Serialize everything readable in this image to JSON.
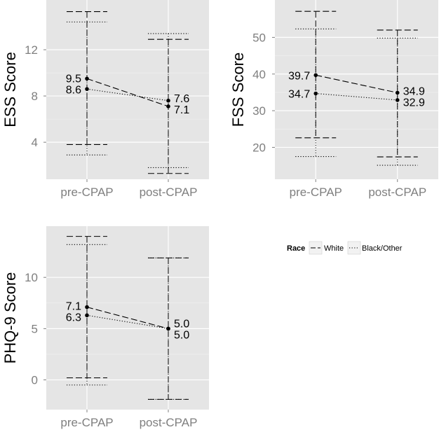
{
  "legend": {
    "title": "Race",
    "entries": [
      {
        "label": "White",
        "dash": "long"
      },
      {
        "label": "Black/Other",
        "dash": "dotted"
      }
    ]
  },
  "chart_data": [
    {
      "type": "line",
      "id": "ess",
      "ylabel": "ESS Score",
      "xlabel": "",
      "categories": [
        "pre-CPAP",
        "post-CPAP"
      ],
      "ylim": [
        0.8,
        16.3
      ],
      "yticks": [
        4,
        8,
        12
      ],
      "series": [
        {
          "name": "White",
          "dash": "long",
          "values": [
            9.5,
            7.1
          ],
          "labels": [
            "9.5",
            "7.1"
          ],
          "lower": [
            3.8,
            1.3
          ],
          "upper": [
            15.3,
            12.9
          ]
        },
        {
          "name": "Black/Other",
          "dash": "dotted",
          "values": [
            8.6,
            7.6
          ],
          "labels": [
            "8.6",
            "7.6"
          ],
          "lower": [
            2.9,
            1.8
          ],
          "upper": [
            14.4,
            13.4
          ]
        }
      ]
    },
    {
      "type": "line",
      "id": "fss",
      "ylabel": "FSS Score",
      "xlabel": "",
      "categories": [
        "pre-CPAP",
        "post-CPAP"
      ],
      "ylim": [
        11.3,
        60.2
      ],
      "yticks": [
        20,
        30,
        40,
        50
      ],
      "series": [
        {
          "name": "White",
          "dash": "long",
          "values": [
            39.7,
            34.9
          ],
          "labels": [
            "39.7",
            "34.9"
          ],
          "lower": [
            22.6,
            17.4
          ],
          "upper": [
            57.1,
            52.0
          ]
        },
        {
          "name": "Black/Other",
          "dash": "dotted",
          "values": [
            34.7,
            32.9
          ],
          "labels": [
            "34.7",
            "32.9"
          ],
          "lower": [
            17.5,
            15.1
          ],
          "upper": [
            52.3,
            49.8
          ]
        }
      ]
    },
    {
      "type": "line",
      "id": "phq",
      "ylabel": "PHQ-9 Score",
      "xlabel": "",
      "categories": [
        "pre-CPAP",
        "post-CPAP"
      ],
      "ylim": [
        -2.9,
        15.0
      ],
      "yticks": [
        0,
        5,
        10
      ],
      "series": [
        {
          "name": "White",
          "dash": "long",
          "values": [
            7.1,
            5.0
          ],
          "labels": [
            "7.1",
            "5.0"
          ],
          "lower": [
            0.2,
            -1.9
          ],
          "upper": [
            14.0,
            11.9
          ]
        },
        {
          "name": "Black/Other",
          "dash": "dotted",
          "values": [
            6.3,
            5.0
          ],
          "labels": [
            "6.3",
            "5.0"
          ],
          "lower": [
            -0.5,
            -1.9
          ],
          "upper": [
            13.2,
            11.9
          ]
        }
      ]
    }
  ]
}
